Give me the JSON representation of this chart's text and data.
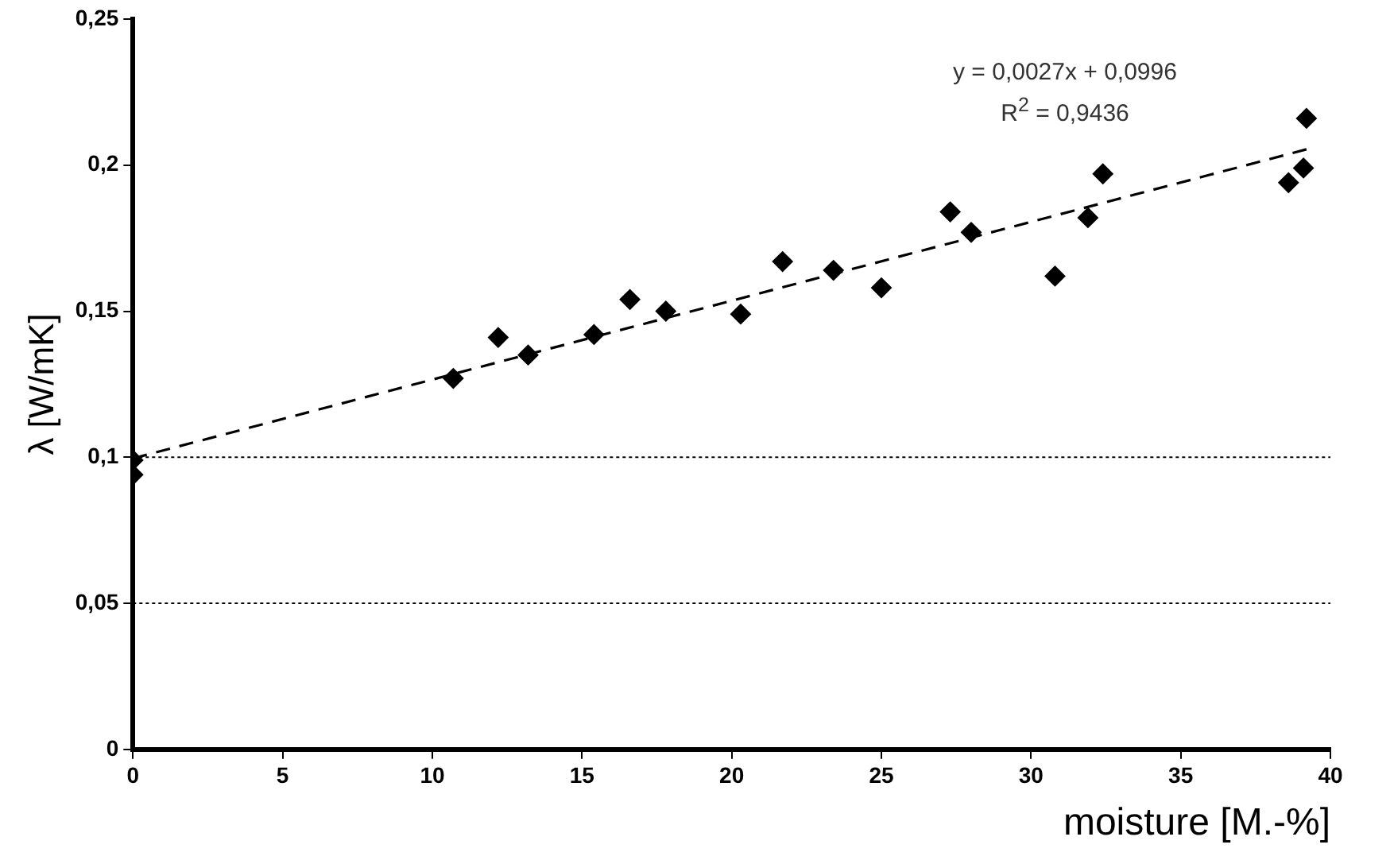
{
  "chart_data": {
    "type": "scatter",
    "xlabel": "moisture [M.-%]",
    "ylabel": "λ [W/mK]",
    "xlim": [
      0,
      40
    ],
    "xticks": [
      0,
      5,
      10,
      15,
      20,
      25,
      30,
      35,
      40
    ],
    "ylim": [
      0,
      0.25
    ],
    "yticks": [
      {
        "value": 0,
        "label": "0"
      },
      {
        "value": 0.05,
        "label": "0,05"
      },
      {
        "value": 0.1,
        "label": "0,1"
      },
      {
        "value": 0.15,
        "label": "0,15"
      },
      {
        "value": 0.2,
        "label": "0,2"
      },
      {
        "value": 0.25,
        "label": "0,25"
      }
    ],
    "grid": false,
    "legend": false,
    "series": [
      {
        "marker": "diamond",
        "color": "#000000",
        "x": [
          0,
          0,
          10.7,
          12.2,
          13.2,
          15.4,
          16.6,
          17.8,
          20.3,
          21.7,
          23.4,
          25,
          27.3,
          28,
          30.8,
          31.9,
          32.4,
          38.6,
          39.1,
          39.2
        ],
        "values": [
          0.099,
          0.094,
          0.127,
          0.141,
          0.135,
          0.142,
          0.154,
          0.15,
          0.149,
          0.167,
          0.164,
          0.158,
          0.184,
          0.177,
          0.162,
          0.182,
          0.197,
          0.194,
          0.199,
          0.216
        ]
      },
      {
        "type": "line",
        "marker": "none",
        "color": "#000000",
        "line_style": "dashed",
        "x": [
          0,
          39.2
        ],
        "values": [
          0.0996,
          0.2054
        ]
      }
    ],
    "ref_lines": [
      {
        "axis": "y",
        "value": 0.05,
        "line_style": "dotted",
        "color": "#000000"
      },
      {
        "axis": "y",
        "value": 0.1,
        "line_style": "dotted",
        "color": "#000000"
      }
    ],
    "annotations": [
      "y = 0,0027x + 0,0996",
      "R$^{2}$ = 0,9436"
    ]
  }
}
